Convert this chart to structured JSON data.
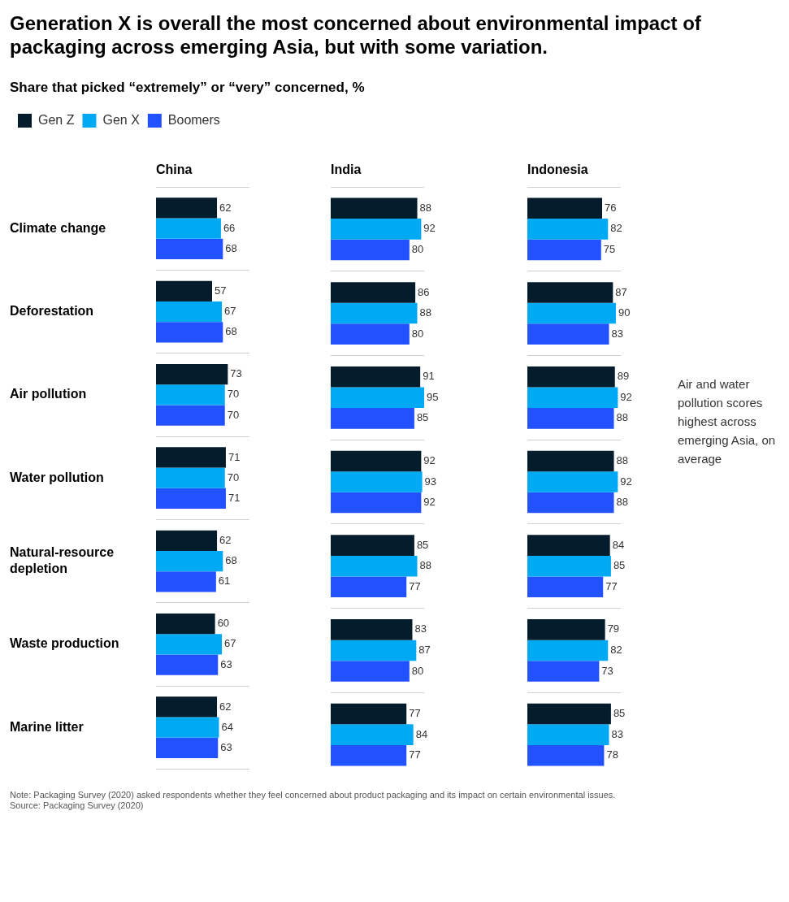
{
  "chart_data": [
    {
      "type": "other",
      "title": "Generation X is overall the most concerned about environmental impact of packaging across emerging Asia, but with some variation.",
      "subtitle": "Share that picked “extremely” or “very” concerned, %"
    },
    {
      "type": "bar",
      "orientation": "horizontal",
      "title": "China",
      "categories": [
        "Climate change",
        "Deforestation",
        "Air pollution",
        "Water pollution",
        "Natural-resource depletion",
        "Waste production",
        "Marine litter"
      ],
      "series": [
        {
          "name": "Gen Z",
          "color": "#051c2c",
          "values": [
            62,
            57,
            73,
            71,
            62,
            60,
            62
          ]
        },
        {
          "name": "Gen X",
          "color": "#00a9f4",
          "values": [
            66,
            67,
            70,
            70,
            68,
            67,
            64
          ]
        },
        {
          "name": "Boomers",
          "color": "#2251ff",
          "values": [
            68,
            68,
            70,
            71,
            61,
            63,
            63
          ]
        }
      ],
      "data_labels": true,
      "legend": "top left",
      "grid": "y",
      "tick_labels": "y"
    },
    {
      "type": "bar",
      "orientation": "horizontal",
      "title": "India",
      "series": [
        {
          "color": "#051c2c",
          "values": [
            88,
            86,
            91,
            92,
            85,
            83,
            77
          ]
        },
        {
          "color": "#00a9f4",
          "values": [
            92,
            88,
            95,
            93,
            88,
            87,
            84
          ]
        },
        {
          "color": "#2251ff",
          "values": [
            80,
            80,
            85,
            92,
            77,
            80,
            77
          ]
        }
      ],
      "data_labels": true,
      "grid": "y",
      "tick_labels": false
    },
    {
      "type": "bar",
      "orientation": "horizontal",
      "title": "Indonesia",
      "series": [
        {
          "color": "#051c2c",
          "values": [
            76,
            87,
            89,
            88,
            84,
            79,
            85
          ]
        },
        {
          "color": "#00a9f4",
          "values": [
            82,
            90,
            92,
            92,
            85,
            82,
            83
          ]
        },
        {
          "color": "#2251ff",
          "values": [
            75,
            83,
            88,
            88,
            77,
            73,
            78
          ]
        }
      ],
      "data_labels": true,
      "grid": "y",
      "tick_labels": false,
      "annotations": [
        "Air and water pollution scores highest across emerging Asia, on average"
      ]
    },
    {
      "type": "other",
      "annotations": [
        "Note: Packaging Survey (2020) asked respondents whether they feel concerned about product packaging and its impact on certain environmental issues.",
        "Source: Packaging Survey (2020)"
      ]
    }
  ]
}
